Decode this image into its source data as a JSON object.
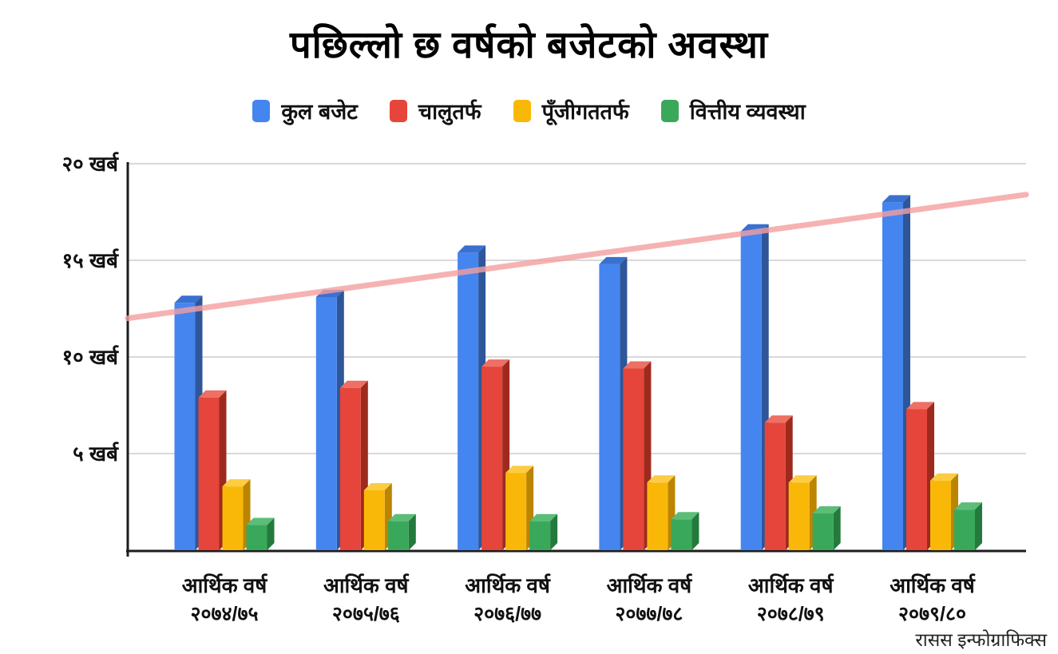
{
  "credit": "रासस इन्फोग्राफिक्स",
  "chart_data": {
    "type": "bar",
    "title": "पछिल्लो छ वर्षको बजेटको अवस्था",
    "subtitle": "",
    "xlabel": "",
    "ylabel": "",
    "unit": "खर्ब",
    "grid": true,
    "legend_position": "top",
    "background": "#ffffff",
    "category_line1": "आर्थिक वर्ष",
    "category_years": [
      "२०७४/७५",
      "२०७५/७६",
      "२०७६/७७",
      "२०७७/७८",
      "२०७८/७९",
      "२०७९/८०"
    ],
    "categories": [
      "आर्थिक वर्ष २०७४/७५",
      "आर्थिक वर्ष २०७५/७६",
      "आर्थिक वर्ष २०७६/७७",
      "आर्थिक वर्ष २०७७/७८",
      "आर्थिक वर्ष २०७८/७९",
      "आर्थिक वर्ष २०७९/८०"
    ],
    "series": [
      {
        "key": "total-budget",
        "name": "कुल बजेट",
        "color": "#4485f0",
        "color_side": "#2e5699",
        "color_top": "#3a70cf",
        "values": [
          12.8,
          13.1,
          15.4,
          14.8,
          16.5,
          18.0
        ]
      },
      {
        "key": "recurrent",
        "name": "चालुतर्फ",
        "color": "#e5453a",
        "color_side": "#9e2a1e",
        "color_top": "#ee6f63",
        "values": [
          7.9,
          8.4,
          9.5,
          9.4,
          6.6,
          7.3
        ]
      },
      {
        "key": "capital",
        "name": "पूँजीगततर्फ",
        "color": "#f9b808",
        "color_side": "#bb8500",
        "color_top": "#fccc42",
        "values": [
          3.3,
          3.1,
          4.0,
          3.5,
          3.5,
          3.6
        ]
      },
      {
        "key": "financing",
        "name": "वित्तीय व्यवस्था",
        "color": "#3aa85b",
        "color_side": "#247a3c",
        "color_top": "#5cbd78",
        "values": [
          1.3,
          1.5,
          1.5,
          1.6,
          1.9,
          2.1
        ]
      }
    ],
    "y_ticks": [
      {
        "value": 5,
        "label": "५ खर्ब"
      },
      {
        "value": 10,
        "label": "१० खर्ब"
      },
      {
        "value": 15,
        "label": "१५ खर्ब"
      },
      {
        "value": 20,
        "label": "२० खर्ब"
      }
    ],
    "ylim": [
      0,
      20
    ],
    "trendline": {
      "start_value": 12.0,
      "end_value": 18.4,
      "color": "#f59fa0",
      "opacity": 0.8
    },
    "axis_color": "#1c1c1c",
    "gridline_color": "#d9d9d9"
  }
}
